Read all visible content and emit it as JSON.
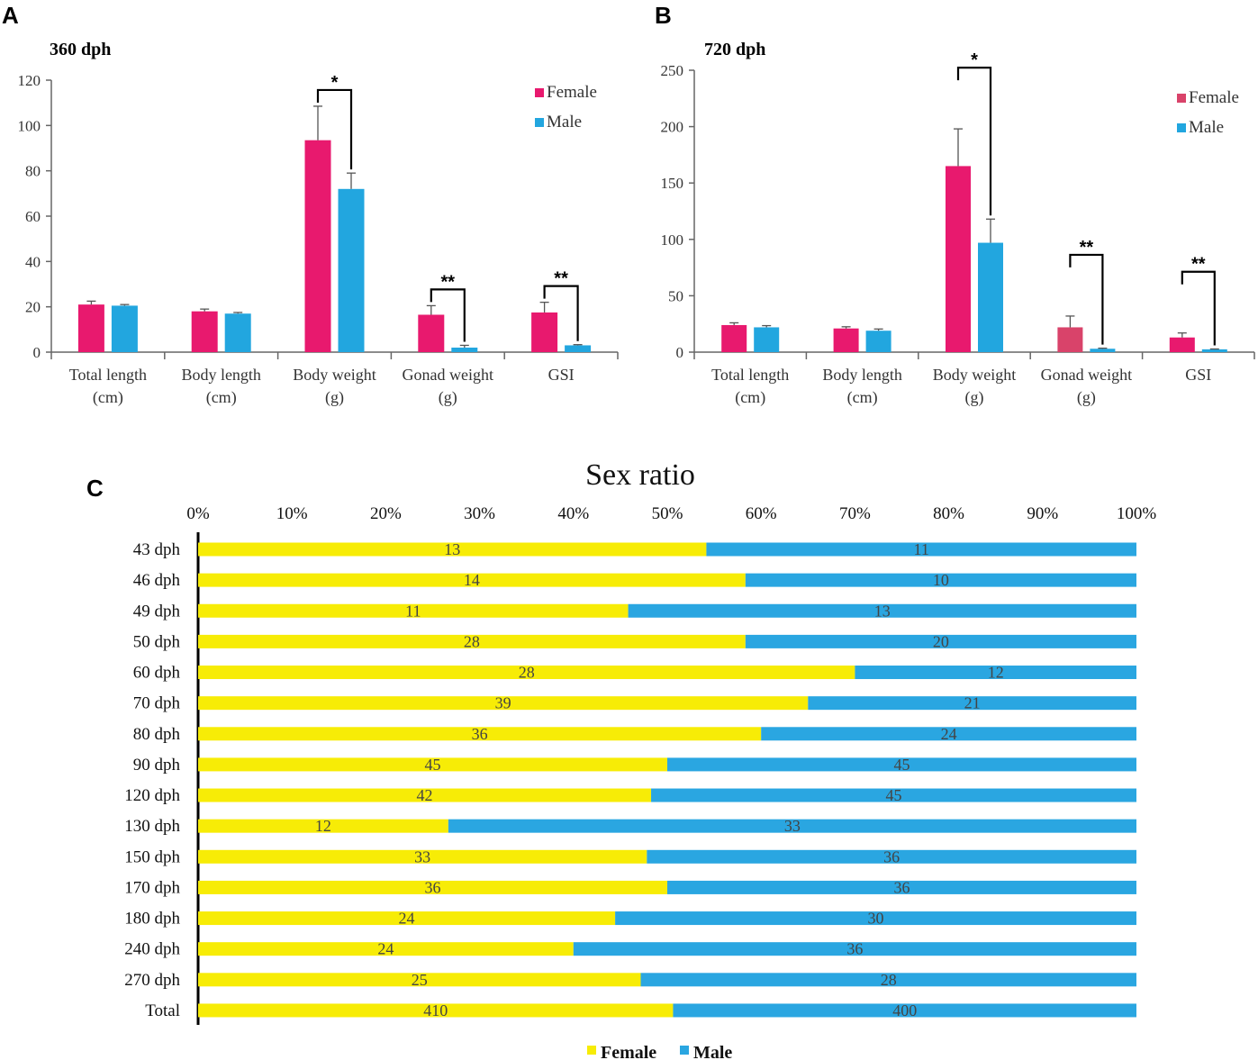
{
  "panels": {
    "A": "A",
    "B": "B",
    "C": "C"
  },
  "colors": {
    "female_bar": "#E8196E",
    "female_bar_b_gonad": "#D9436A",
    "male_bar": "#22A6DF",
    "female_stack": "#F7EC06",
    "male_stack": "#2AA6E1"
  },
  "chart_data": [
    {
      "type": "bar",
      "panel": "A",
      "title": "360 dph",
      "categories": [
        {
          "line1": "Total  length",
          "line2": "(cm)"
        },
        {
          "line1": "Body  length",
          "line2": "(cm)"
        },
        {
          "line1": "Body weight",
          "line2": "(g)"
        },
        {
          "line1": "Gonad  weight",
          "line2": "(g)"
        },
        {
          "line1": "GSI",
          "line2": ""
        }
      ],
      "series": [
        {
          "name": "Female",
          "values": [
            21,
            18,
            93.5,
            16.5,
            17.5
          ],
          "errors": [
            1.5,
            1,
            15,
            4,
            4.5
          ]
        },
        {
          "name": "Male",
          "values": [
            20.5,
            17,
            72,
            2,
            3
          ],
          "errors": [
            0.5,
            0.5,
            7,
            1,
            0.3
          ]
        }
      ],
      "yticks": [
        "0",
        "20",
        "40",
        "60",
        "80",
        "100",
        "120"
      ],
      "ylim": [
        0,
        120
      ],
      "significance": [
        {
          "category": 2,
          "label": "*"
        },
        {
          "category": 3,
          "label": "**"
        },
        {
          "category": 4,
          "label": "**"
        }
      ],
      "legend_position": "top-right"
    },
    {
      "type": "bar",
      "panel": "B",
      "title": "720 dph",
      "categories": [
        {
          "line1": "Total  length",
          "line2": "(cm)"
        },
        {
          "line1": "Body  length",
          "line2": "(cm)"
        },
        {
          "line1": "Body weight",
          "line2": "(g)"
        },
        {
          "line1": "Gonad  weight",
          "line2": "(g)"
        },
        {
          "line1": "GSI",
          "line2": ""
        }
      ],
      "series": [
        {
          "name": "Female",
          "values": [
            24,
            21,
            165,
            22,
            13
          ],
          "errors": [
            2,
            1.5,
            33,
            10,
            4
          ]
        },
        {
          "name": "Male",
          "values": [
            22,
            19,
            97,
            3,
            2.5
          ],
          "errors": [
            1.5,
            1.5,
            21,
            0.5,
            0.3
          ]
        }
      ],
      "yticks": [
        "0",
        "50",
        "100",
        "150",
        "200",
        "250"
      ],
      "ylim": [
        0,
        250
      ],
      "significance": [
        {
          "category": 2,
          "label": "*"
        },
        {
          "category": 3,
          "label": "**"
        },
        {
          "category": 4,
          "label": "**"
        }
      ],
      "legend_position": "top-right"
    },
    {
      "type": "bar",
      "orientation": "horizontal-stacked-100",
      "panel": "C",
      "title": "Sex ratio",
      "xticks": [
        "0%",
        "10%",
        "20%",
        "30%",
        "40%",
        "50%",
        "60%",
        "70%",
        "80%",
        "90%",
        "100%"
      ],
      "categories": [
        "43 dph",
        "46 dph",
        "49 dph",
        "50 dph",
        "60 dph",
        "70 dph",
        "80 dph",
        "90 dph",
        "120 dph",
        "130 dph",
        "150 dph",
        "170 dph",
        "180 dph",
        "240 dph",
        "270 dph",
        "Total"
      ],
      "series": [
        {
          "name": "Female",
          "values": [
            13,
            14,
            11,
            28,
            28,
            39,
            36,
            45,
            42,
            12,
            33,
            36,
            24,
            24,
            25,
            410
          ]
        },
        {
          "name": "Male",
          "values": [
            11,
            10,
            13,
            20,
            12,
            21,
            24,
            45,
            45,
            33,
            36,
            36,
            30,
            36,
            28,
            400
          ]
        }
      ],
      "legend_position": "bottom"
    }
  ]
}
